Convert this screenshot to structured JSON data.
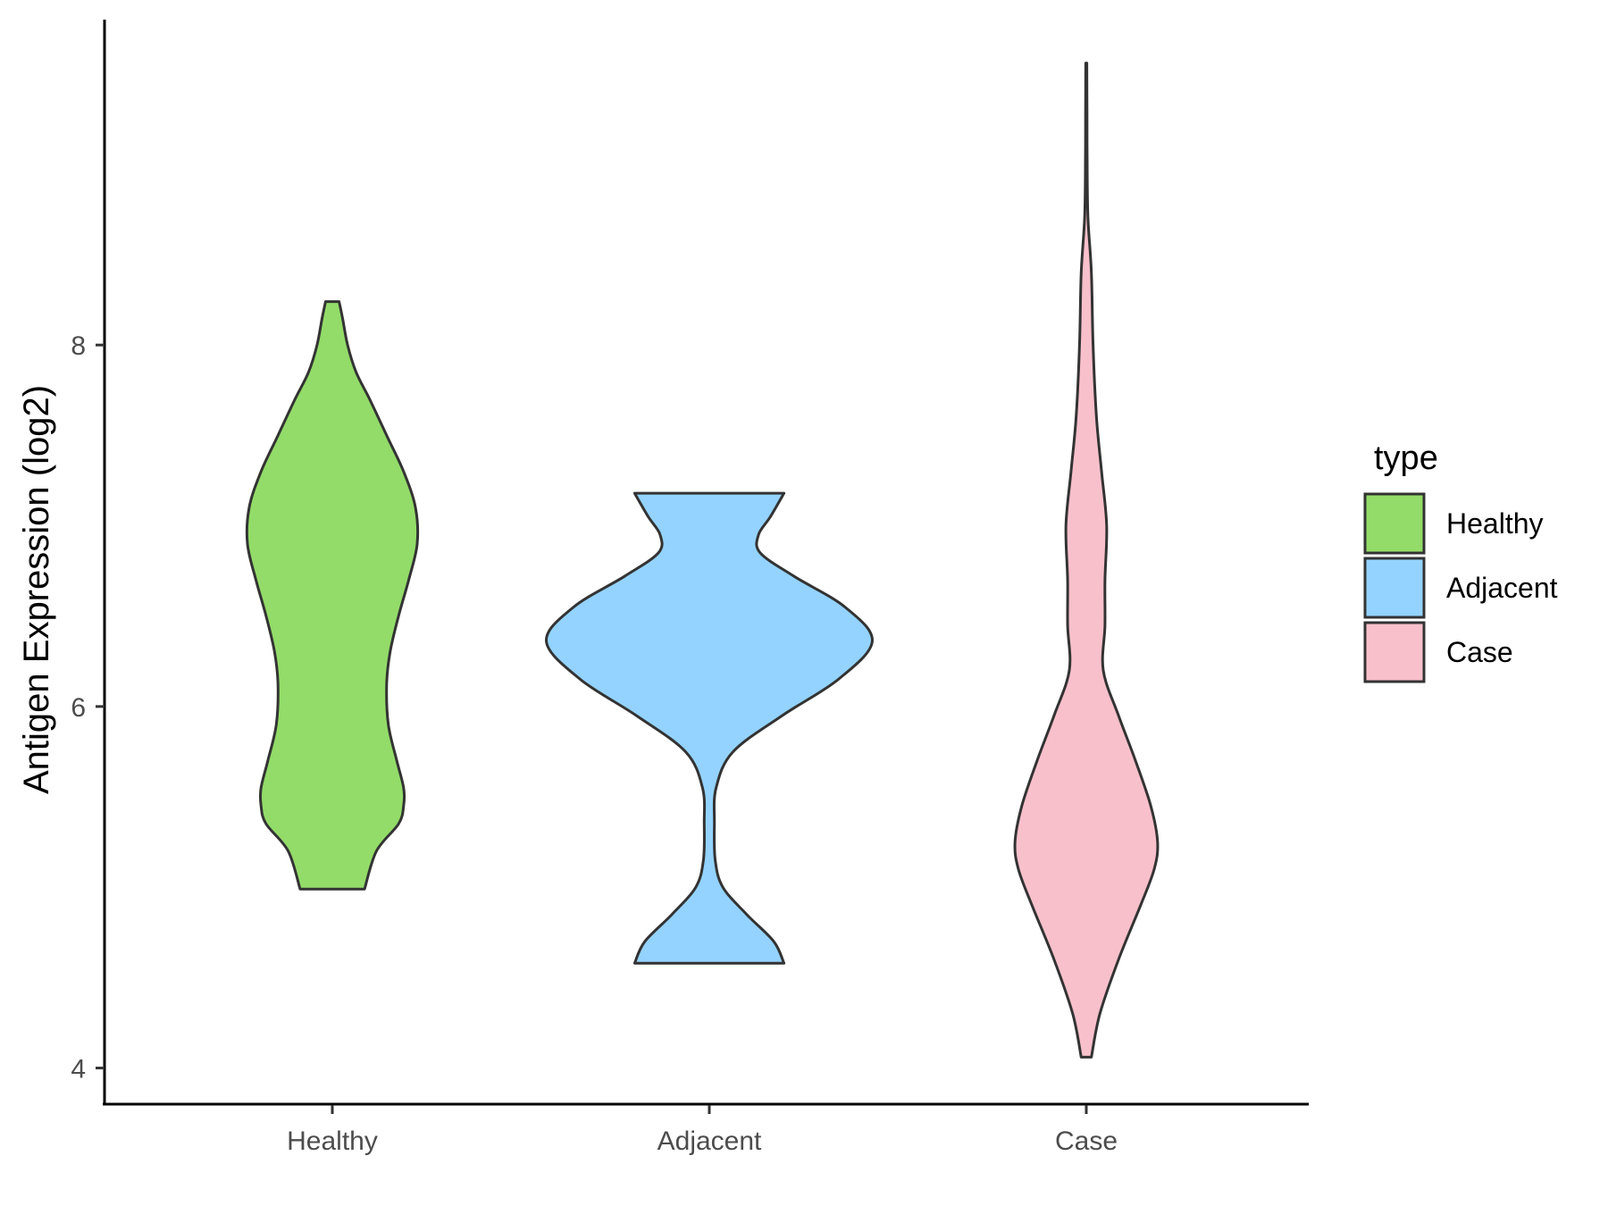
{
  "chart_data": {
    "type": "violin",
    "ylabel": "Antigen Expression (log2)",
    "xlabel": "",
    "ylim": [
      3.8,
      9.8
    ],
    "yticks": [
      4,
      6,
      8
    ],
    "categories": [
      "Healthy",
      "Adjacent",
      "Case"
    ],
    "legend": {
      "title": "type",
      "position": "right",
      "entries": [
        "Healthy",
        "Adjacent",
        "Case"
      ]
    },
    "series": [
      {
        "name": "Healthy",
        "color": "#93dc69",
        "min": 4.99,
        "max": 8.24,
        "density": [
          [
            4.99,
            0.19
          ],
          [
            5.2,
            0.26
          ],
          [
            5.35,
            0.39
          ],
          [
            5.45,
            0.42
          ],
          [
            5.55,
            0.42
          ],
          [
            5.7,
            0.38
          ],
          [
            5.9,
            0.33
          ],
          [
            6.12,
            0.32
          ],
          [
            6.3,
            0.34
          ],
          [
            6.5,
            0.39
          ],
          [
            6.7,
            0.45
          ],
          [
            6.9,
            0.5
          ],
          [
            7.1,
            0.49
          ],
          [
            7.3,
            0.42
          ],
          [
            7.5,
            0.32
          ],
          [
            7.7,
            0.22
          ],
          [
            7.85,
            0.14
          ],
          [
            8.0,
            0.09
          ],
          [
            8.15,
            0.06
          ],
          [
            8.24,
            0.04
          ]
        ]
      },
      {
        "name": "Adjacent",
        "color": "#94d3ff",
        "min": 4.58,
        "max": 7.18,
        "density": [
          [
            4.58,
            0.44
          ],
          [
            4.7,
            0.38
          ],
          [
            4.85,
            0.22
          ],
          [
            5.0,
            0.08
          ],
          [
            5.15,
            0.035
          ],
          [
            5.35,
            0.03
          ],
          [
            5.55,
            0.04
          ],
          [
            5.75,
            0.14
          ],
          [
            5.95,
            0.43
          ],
          [
            6.15,
            0.76
          ],
          [
            6.36,
            0.96
          ],
          [
            6.55,
            0.8
          ],
          [
            6.72,
            0.5
          ],
          [
            6.85,
            0.3
          ],
          [
            6.95,
            0.29
          ],
          [
            7.05,
            0.36
          ],
          [
            7.18,
            0.44
          ]
        ]
      },
      {
        "name": "Case",
        "color": "#f8c0cb",
        "min": 4.06,
        "max": 9.56,
        "density": [
          [
            4.06,
            0.03
          ],
          [
            4.3,
            0.08
          ],
          [
            4.6,
            0.19
          ],
          [
            4.9,
            0.32
          ],
          [
            5.1,
            0.4
          ],
          [
            5.25,
            0.42
          ],
          [
            5.45,
            0.38
          ],
          [
            5.7,
            0.29
          ],
          [
            5.95,
            0.19
          ],
          [
            6.2,
            0.1
          ],
          [
            6.45,
            0.11
          ],
          [
            6.7,
            0.11
          ],
          [
            7.0,
            0.12
          ],
          [
            7.3,
            0.09
          ],
          [
            7.6,
            0.06
          ],
          [
            8.0,
            0.04
          ],
          [
            8.4,
            0.03
          ],
          [
            8.7,
            0.01
          ],
          [
            9.0,
            0.005
          ],
          [
            9.3,
            0.004
          ],
          [
            9.56,
            0.003
          ]
        ]
      }
    ]
  }
}
